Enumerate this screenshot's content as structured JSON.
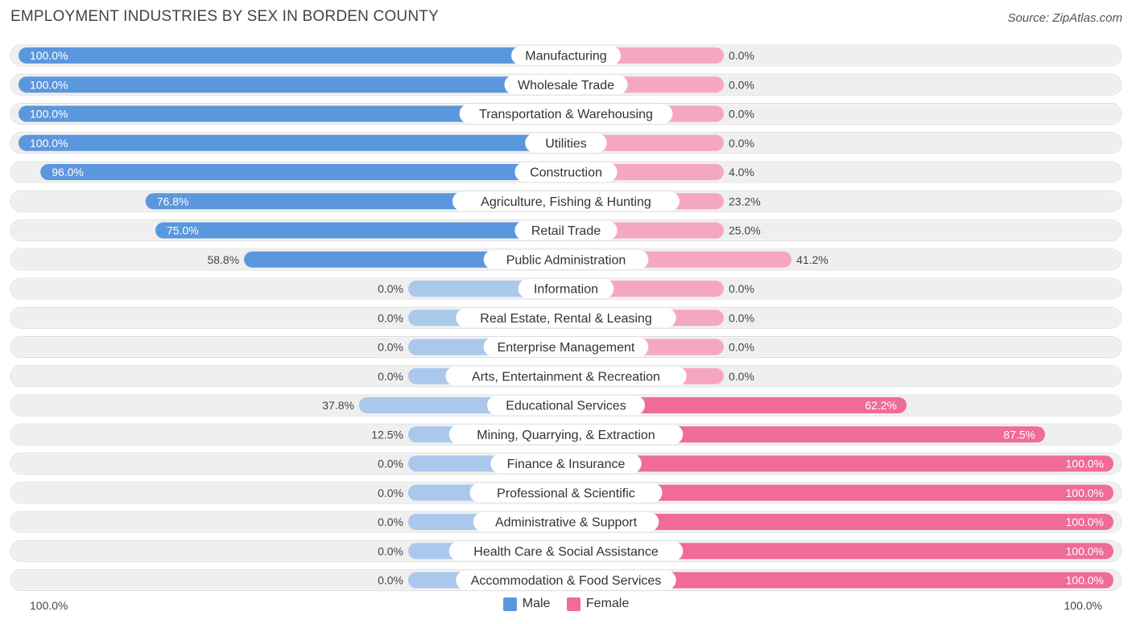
{
  "title": "EMPLOYMENT INDUSTRIES BY SEX IN BORDEN COUNTY",
  "source": "Source: ZipAtlas.com",
  "colors": {
    "male_strong": "#5b97dd",
    "male_light": "#a9c8ec",
    "female_strong": "#f06b96",
    "female_light": "#f6a7c0",
    "row_bg": "#efefef"
  },
  "legend": {
    "male_label": "Male",
    "female_label": "Female"
  },
  "axis": {
    "left_label": "100.0%",
    "right_label": "100.0%"
  },
  "chart_data": {
    "type": "bar",
    "title": "EMPLOYMENT INDUSTRIES BY SEX IN BORDEN COUNTY",
    "orientation": "horizontal-diverging",
    "xlim": [
      -100,
      100
    ],
    "categories": [
      "Manufacturing",
      "Wholesale Trade",
      "Transportation & Warehousing",
      "Utilities",
      "Construction",
      "Agriculture, Fishing & Hunting",
      "Retail Trade",
      "Public Administration",
      "Information",
      "Real Estate, Rental & Leasing",
      "Enterprise Management",
      "Arts, Entertainment & Recreation",
      "Educational Services",
      "Mining, Quarrying, & Extraction",
      "Finance & Insurance",
      "Professional & Scientific",
      "Administrative & Support",
      "Health Care & Social Assistance",
      "Accommodation & Food Services"
    ],
    "series": [
      {
        "name": "Male",
        "values": [
          100.0,
          100.0,
          100.0,
          100.0,
          96.0,
          76.8,
          75.0,
          58.8,
          0.0,
          0.0,
          0.0,
          0.0,
          37.8,
          12.5,
          0.0,
          0.0,
          0.0,
          0.0,
          0.0
        ],
        "labels": [
          "100.0%",
          "100.0%",
          "100.0%",
          "100.0%",
          "96.0%",
          "76.8%",
          "75.0%",
          "58.8%",
          "0.0%",
          "0.0%",
          "0.0%",
          "0.0%",
          "37.8%",
          "12.5%",
          "0.0%",
          "0.0%",
          "0.0%",
          "0.0%",
          "0.0%"
        ]
      },
      {
        "name": "Female",
        "values": [
          0.0,
          0.0,
          0.0,
          0.0,
          4.0,
          23.2,
          25.0,
          41.2,
          0.0,
          0.0,
          0.0,
          0.0,
          62.2,
          87.5,
          100.0,
          100.0,
          100.0,
          100.0,
          100.0
        ],
        "labels": [
          "0.0%",
          "0.0%",
          "0.0%",
          "0.0%",
          "4.0%",
          "23.2%",
          "25.0%",
          "41.2%",
          "0.0%",
          "0.0%",
          "0.0%",
          "0.0%",
          "62.2%",
          "87.5%",
          "100.0%",
          "100.0%",
          "100.0%",
          "100.0%",
          "100.0%"
        ]
      }
    ],
    "legend": [
      "Male",
      "Female"
    ],
    "legend_position": "bottom-center"
  }
}
